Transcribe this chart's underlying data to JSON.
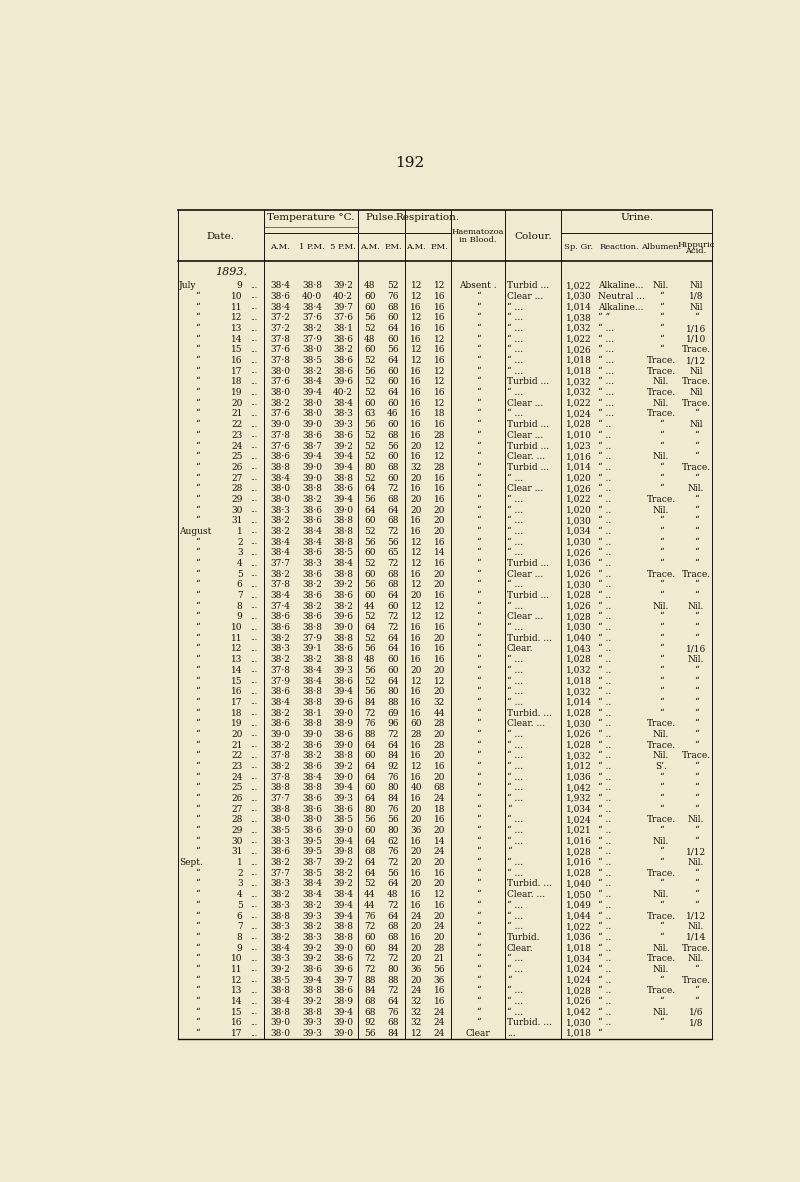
{
  "page_number": "192",
  "bg_color": "#f0ead0",
  "text_color": "#1a1008",
  "year_label": "1893.",
  "rows": [
    [
      "July",
      "9",
      "...",
      "38·4",
      "38·8",
      "39·2",
      "48",
      "52",
      "12",
      "12",
      "Absent .",
      "Turbid ...",
      "1,022",
      "Alkaline...",
      "Nil.",
      "Nil"
    ],
    [
      "“",
      "10",
      "...",
      "38·6",
      "40·0",
      "40·2",
      "60",
      "76",
      "12",
      "16",
      "“",
      "Clear ...",
      "1,030",
      "Neutral ...",
      "“",
      "1/8"
    ],
    [
      "“",
      "11",
      "...",
      "38·4",
      "38·4",
      "39·7",
      "60",
      "68",
      "16",
      "16",
      "“",
      "“ ...",
      "1,014",
      "Alkaline...",
      "“",
      "Nil"
    ],
    [
      "“",
      "12",
      "...",
      "37·2",
      "37·6",
      "37·6",
      "56",
      "60",
      "12",
      "16",
      "“",
      "“ ...",
      "1,038",
      "“ “",
      "“",
      "“"
    ],
    [
      "“",
      "13",
      "...",
      "37·2",
      "38·2",
      "38·1",
      "52",
      "64",
      "16",
      "16",
      "“",
      "“ ...",
      "1,032",
      "“ ...",
      "“",
      "1/16"
    ],
    [
      "“",
      "14",
      "...",
      "37·8",
      "37·9",
      "38·6",
      "48",
      "60",
      "16",
      "12",
      "“",
      "“ ...",
      "1,022",
      "“ ...",
      "“",
      "1/10"
    ],
    [
      "“",
      "15",
      "...",
      "37·6",
      "38·0",
      "38·2",
      "60",
      "56",
      "12",
      "16",
      "“",
      "“ ...",
      "1,026",
      "“ ...",
      "“",
      "Trace."
    ],
    [
      "“",
      "16",
      "...",
      "37·8",
      "38·5",
      "38·6",
      "52",
      "64",
      "12",
      "16",
      "“",
      "“ ...",
      "1,018",
      "“ ...",
      "Trace.",
      "1/12"
    ],
    [
      "“",
      "17",
      "...",
      "38·0",
      "38·2",
      "38·6",
      "56",
      "60",
      "16",
      "12",
      "“",
      "“ ...",
      "1,018",
      "“ ...",
      "Trace.",
      "Nil"
    ],
    [
      "“",
      "18",
      "...",
      "37·6",
      "38·4",
      "39·6",
      "52",
      "60",
      "16",
      "12",
      "“",
      "Turbid ...",
      "1,032",
      "“ ...",
      "Nil.",
      "Trace."
    ],
    [
      "“",
      "19",
      "...",
      "38·0",
      "39·4",
      "40·2",
      "52",
      "64",
      "16",
      "16",
      "“",
      "“ ...",
      "1,032",
      "“ ...",
      "Trace.",
      "Nil"
    ],
    [
      "“",
      "20",
      "...",
      "38·2",
      "38·0",
      "38·4",
      "60",
      "60",
      "16",
      "12",
      "“",
      "Clear ...",
      "1,022",
      "“ ...",
      "Nil.",
      "Trace."
    ],
    [
      "“",
      "21",
      "...",
      "37·6",
      "38·0",
      "38·3",
      "63",
      "46",
      "16",
      "18",
      "“",
      "“ ...",
      "1,024",
      "“ ...",
      "Trace.",
      "“"
    ],
    [
      "“",
      "22",
      "...",
      "39·0",
      "39·0",
      "39·3",
      "56",
      "60",
      "16",
      "16",
      "“",
      "Turbid ...",
      "1,028",
      "“ ..",
      "“",
      "Nil"
    ],
    [
      "“",
      "23",
      "...",
      "37·8",
      "38·6",
      "38·6",
      "52",
      "68",
      "16",
      "28",
      "“",
      "Clear ...",
      "1,010",
      "“ ..",
      "“",
      "“"
    ],
    [
      "“",
      "24",
      "...",
      "37·6",
      "38·7",
      "39·2",
      "52",
      "56",
      "20",
      "12",
      "“",
      "Turbid ...",
      "1,023",
      "“ ..",
      "“",
      "“"
    ],
    [
      "“",
      "25",
      "...",
      "38·6",
      "39·4",
      "39·4",
      "52",
      "60",
      "16",
      "12",
      "“",
      "Clear. ...",
      "1,016",
      "“ ..",
      "Nil.",
      "“"
    ],
    [
      "“",
      "26",
      "...",
      "38·8",
      "39·0",
      "39·4",
      "80",
      "68",
      "32",
      "28",
      "“",
      "Turbid ...",
      "1,014",
      "“ ..",
      "“",
      "Trace."
    ],
    [
      "“",
      "27",
      "...",
      "38·4",
      "39·0",
      "38·8",
      "52",
      "60",
      "20",
      "16",
      "“",
      "“ ...",
      "1,020",
      "“ ..",
      "“",
      "“"
    ],
    [
      "“",
      "28",
      "...",
      "38·0",
      "38·8",
      "38·6",
      "64",
      "72",
      "16",
      "16",
      "“",
      "Clear ...",
      "1,026",
      "“ ..",
      "“",
      "Nil."
    ],
    [
      "“",
      "29",
      "...",
      "38·0",
      "38·2",
      "39·4",
      "56",
      "68",
      "20",
      "16",
      "“",
      "“ ...",
      "1,022",
      "“ ..",
      "Trace.",
      "“"
    ],
    [
      "“",
      "30",
      "...",
      "38·3",
      "38·6",
      "39·0",
      "64",
      "64",
      "20",
      "20",
      "“",
      "“ ...",
      "1,020",
      "“ ..",
      "Nil.",
      "“"
    ],
    [
      "“",
      "31",
      "...",
      "38·2",
      "38·6",
      "38·8",
      "60",
      "68",
      "16",
      "20",
      "“",
      "“ ...",
      "1,030",
      "“ ..",
      "“",
      "“"
    ],
    [
      "August",
      "1",
      "...",
      "38·2",
      "38·4",
      "38·8",
      "52",
      "72",
      "16",
      "20",
      "“",
      "“ ...",
      "1,034",
      "“ ..",
      "“",
      "“"
    ],
    [
      "“",
      "2",
      "...",
      "38·4",
      "38·4",
      "38·8",
      "56",
      "56",
      "12",
      "16",
      "“",
      "“ ...",
      "1,030",
      "“ ..",
      "“",
      "“"
    ],
    [
      "“",
      "3",
      "...",
      "38·4",
      "38·6",
      "38·5",
      "60",
      "65",
      "12",
      "14",
      "“",
      "“ ...",
      "1,026",
      "“ ..",
      "“",
      "“"
    ],
    [
      "“",
      "4",
      "...",
      "37·7",
      "38·3",
      "38·4",
      "52",
      "72",
      "12",
      "16",
      "“",
      "Turbid ...",
      "1,036",
      "“ ..",
      "“",
      "“"
    ],
    [
      "“",
      "5",
      "...",
      "38·2",
      "38·6",
      "38·8",
      "60",
      "68",
      "16",
      "20",
      "“",
      "Clear ...",
      "1,026",
      "“ ..",
      "Trace.",
      "Trace."
    ],
    [
      "“",
      "6",
      "...",
      "37·8",
      "38·2",
      "39·2",
      "56",
      "68",
      "12",
      "20",
      "“",
      "“ ...",
      "1,030",
      "“ ..",
      "“",
      "“"
    ],
    [
      "“",
      "7",
      "...",
      "38·4",
      "38·6",
      "38·6",
      "60",
      "64",
      "20",
      "16",
      "“",
      "Turbid ...",
      "1,028",
      "“ ..",
      "“",
      "“"
    ],
    [
      "“",
      "8",
      "...",
      "37·4",
      "38·2",
      "38·2",
      "44",
      "60",
      "12",
      "12",
      "“",
      "“ ...",
      "1,026",
      "“ ..",
      "Nil.",
      "Nil."
    ],
    [
      "“",
      "9",
      "...",
      "38·6",
      "38·6",
      "39·6",
      "52",
      "72",
      "12",
      "12",
      "“",
      "Clear ...",
      "1,028",
      "“ ..",
      "“",
      "“"
    ],
    [
      "“",
      "10",
      "...",
      "38·6",
      "38·8",
      "39·0",
      "64",
      "72",
      "16",
      "16",
      "“",
      "“ ...",
      "1,030",
      "“ ..",
      "“",
      "“"
    ],
    [
      "“",
      "11",
      "...",
      "38·2",
      "37·9",
      "38·8",
      "52",
      "64",
      "16",
      "20",
      "“",
      "Turbid. ...",
      "1,040",
      "“ ..",
      "“",
      "“"
    ],
    [
      "“",
      "12",
      "...",
      "38·3",
      "39·1",
      "38·6",
      "56",
      "64",
      "16",
      "16",
      "“",
      "Clear.",
      "1,043",
      "“ ..",
      "“",
      "1/16"
    ],
    [
      "“",
      "13",
      "...",
      "38·2",
      "38·2",
      "38·8",
      "48",
      "60",
      "16",
      "16",
      "“",
      "“ ...",
      "1,028",
      "“ ..",
      "“",
      "Nil."
    ],
    [
      "“",
      "14",
      "...",
      "37·8",
      "38·4",
      "39·3",
      "56",
      "60",
      "20",
      "20",
      "“",
      "“ ...",
      "1,032",
      "“ ..",
      "“",
      "“"
    ],
    [
      "“",
      "15",
      "...",
      "37·9",
      "38·4",
      "38·6",
      "52",
      "64",
      "12",
      "12",
      "“",
      "“ ...",
      "1,018",
      "“ ..",
      "“",
      "“"
    ],
    [
      "“",
      "16",
      "...",
      "38·6",
      "38·8",
      "39·4",
      "56",
      "80",
      "16",
      "20",
      "“",
      "“ ...",
      "1,032",
      "“ ..",
      "“",
      "“"
    ],
    [
      "“",
      "17",
      "...",
      "38·4",
      "38·8",
      "39·6",
      "84",
      "88",
      "16",
      "32",
      "“",
      "“ ...",
      "1,014",
      "“ ..",
      "“",
      "“"
    ],
    [
      "“",
      "18",
      "...",
      "38·2",
      "38·1",
      "39·0",
      "72",
      "69",
      "16",
      "44",
      "“",
      "Turbid. ...",
      "1,028",
      "“ ..",
      "“",
      "“"
    ],
    [
      "“",
      "19",
      "...",
      "38·6",
      "38·8",
      "38·9",
      "76",
      "96",
      "60",
      "28",
      "“",
      "Clear. ...",
      "1,030",
      "“ ..",
      "Trace.",
      "“"
    ],
    [
      "“",
      "20",
      "...",
      "39·0",
      "39·0",
      "38·6",
      "88",
      "72",
      "28",
      "20",
      "“",
      "“ ...",
      "1,026",
      "“ ..",
      "Nil.",
      "“"
    ],
    [
      "“",
      "21",
      "...",
      "38·2",
      "38·6",
      "39·0",
      "64",
      "64",
      "16",
      "28",
      "“",
      "“ ...",
      "1,028",
      "“ ..",
      "Trace.",
      "“"
    ],
    [
      "“",
      "22",
      "...",
      "37·8",
      "38·2",
      "38·8",
      "60",
      "84",
      "16",
      "20",
      "“",
      "“ ...",
      "1,032",
      "“ ..",
      "Nil.",
      "Trace."
    ],
    [
      "“",
      "23",
      "...",
      "38·2",
      "38·6",
      "39·2",
      "64",
      "92",
      "12",
      "16",
      "“",
      "“ ...",
      "1,012",
      "“ ..",
      "S’.",
      "“"
    ],
    [
      "“",
      "24",
      "...",
      "37·8",
      "38·4",
      "39·0",
      "64",
      "76",
      "16",
      "20",
      "“",
      "“ ...",
      "1,036",
      "“ ..",
      "“",
      "“"
    ],
    [
      "“",
      "25",
      "...",
      "38·8",
      "38·8",
      "39·4",
      "60",
      "80",
      "40",
      "68",
      "“",
      "“ ...",
      "1,042",
      "“ ..",
      "“",
      "“"
    ],
    [
      "“",
      "26",
      "...",
      "37·7",
      "38·6",
      "39·3",
      "64",
      "84",
      "16",
      "24",
      "“",
      "“ ...",
      "1,932",
      "“ ..",
      "“",
      "“"
    ],
    [
      "“",
      "27",
      "...",
      "38·8",
      "38·6",
      "38·6",
      "80",
      "76",
      "20",
      "18",
      "“",
      "“",
      "1,034",
      "“ ..",
      "“",
      "“"
    ],
    [
      "“",
      "28",
      "...",
      "38·0",
      "38·0",
      "38·5",
      "56",
      "56",
      "20",
      "16",
      "“",
      "“ ...",
      "1,024",
      "“ ..",
      "Trace.",
      "Nil."
    ],
    [
      "“",
      "29",
      "...",
      "38·5",
      "38·6",
      "39·0",
      "60",
      "80",
      "36",
      "20",
      "“",
      "“ ...",
      "1,021",
      "“ ..",
      "“",
      "“"
    ],
    [
      "“",
      "30",
      "...",
      "38·3",
      "39·5",
      "39·4",
      "64",
      "62",
      "16",
      "14",
      "“",
      "“ ...",
      "1,016",
      "“ ..",
      "Nil.",
      "“"
    ],
    [
      "“",
      "31",
      "...",
      "38·6",
      "39·5",
      "39·8",
      "68",
      "76",
      "20",
      "24",
      "“",
      "“",
      "1,028",
      "“ ..",
      "“",
      "1/12"
    ],
    [
      "Sept.",
      "1",
      "...",
      "38·2",
      "38·7",
      "39·2",
      "64",
      "72",
      "20",
      "20",
      "“",
      "“ ...",
      "1,016",
      "“ ..",
      "“",
      "Nil."
    ],
    [
      "“",
      "2",
      "...",
      "37·7",
      "38·5",
      "38·2",
      "64",
      "56",
      "16",
      "16",
      "“",
      "“ ...",
      "1,028",
      "“ ..",
      "Trace.",
      "“"
    ],
    [
      "“",
      "3",
      "...",
      "38·3",
      "38·4",
      "39·2",
      "52",
      "64",
      "20",
      "20",
      "“",
      "Turbid. ...",
      "1,040",
      "“ ..",
      "“",
      "“"
    ],
    [
      "“",
      "4",
      "...",
      "38·2",
      "38·4",
      "38·4",
      "44",
      "48",
      "16",
      "12",
      "“",
      "Clear. ...",
      "1,050",
      "“ ..",
      "Nil.",
      "“"
    ],
    [
      "“",
      "5",
      "...",
      "38·3",
      "38·2",
      "39·4",
      "44",
      "72",
      "16",
      "16",
      "“",
      "“ ...",
      "1,049",
      "“ ..",
      "“",
      "“"
    ],
    [
      "“",
      "6",
      "...",
      "38·8",
      "39·3",
      "39·4",
      "76",
      "64",
      "24",
      "20",
      "“",
      "“ ...",
      "1,044",
      "“ ..",
      "Trace.",
      "1/12"
    ],
    [
      "“",
      "7",
      "...",
      "38·3",
      "38·2",
      "38·8",
      "72",
      "68",
      "20",
      "24",
      "“",
      "“ ...",
      "1,022",
      "“ ..",
      "“",
      "Nil."
    ],
    [
      "“",
      "8",
      "...",
      "38·2",
      "38·3",
      "38·8",
      "60",
      "68",
      "16",
      "20",
      "“",
      "Turbid.",
      "1,036",
      "“ ..",
      "“",
      "1/14"
    ],
    [
      "“",
      "9",
      "...",
      "38·4",
      "39·2",
      "39·0",
      "60",
      "84",
      "20",
      "28",
      "“",
      "Clear.",
      "1,018",
      "“ ..",
      "Nil.",
      "Trace."
    ],
    [
      "“",
      "10",
      "...",
      "38·3",
      "39·2",
      "38·6",
      "72",
      "72",
      "20",
      "21",
      "“",
      "“ ...",
      "1,034",
      "“ ..",
      "Trace.",
      "Nil."
    ],
    [
      "“",
      "11",
      "...",
      "39·2",
      "38·6",
      "39·6",
      "72",
      "80",
      "36",
      "56",
      "“",
      "“ ...",
      "1,024",
      "“ ..",
      "Nil.",
      "“"
    ],
    [
      "“",
      "12",
      "...",
      "38·5",
      "39·4",
      "39·7",
      "88",
      "88",
      "20",
      "36",
      "“",
      "“",
      "1,024",
      "“ ..",
      "“",
      "Trace."
    ],
    [
      "“",
      "13",
      "...",
      "38·8",
      "38·8",
      "38·6",
      "84",
      "72",
      "24",
      "16",
      "“",
      "“ ...",
      "1,028",
      "“ ..",
      "Trace.",
      "“"
    ],
    [
      "“",
      "14",
      "...",
      "38·4",
      "39·2",
      "38·9",
      "68",
      "64",
      "32",
      "16",
      "“",
      "“ ...",
      "1,026",
      "“ ..",
      "“",
      "“"
    ],
    [
      "“",
      "15",
      "...",
      "38·8",
      "38·8",
      "39·4",
      "68",
      "76",
      "32",
      "24",
      "“",
      "“ ...",
      "1,042",
      "“ ..",
      "Nil.",
      "1/6"
    ],
    [
      "“",
      "16",
      "...",
      "39·0",
      "39·3",
      "39·0",
      "92",
      "68",
      "32",
      "24",
      "“",
      "Turbid. ...",
      "1,030",
      "“ ..",
      "“",
      "1/8"
    ],
    [
      "“",
      "17",
      "...",
      "38·0",
      "39·3",
      "39·0",
      "56",
      "84",
      "12",
      "24",
      "Clear",
      "...",
      "1,018",
      "“",
      "",
      ""
    ]
  ]
}
